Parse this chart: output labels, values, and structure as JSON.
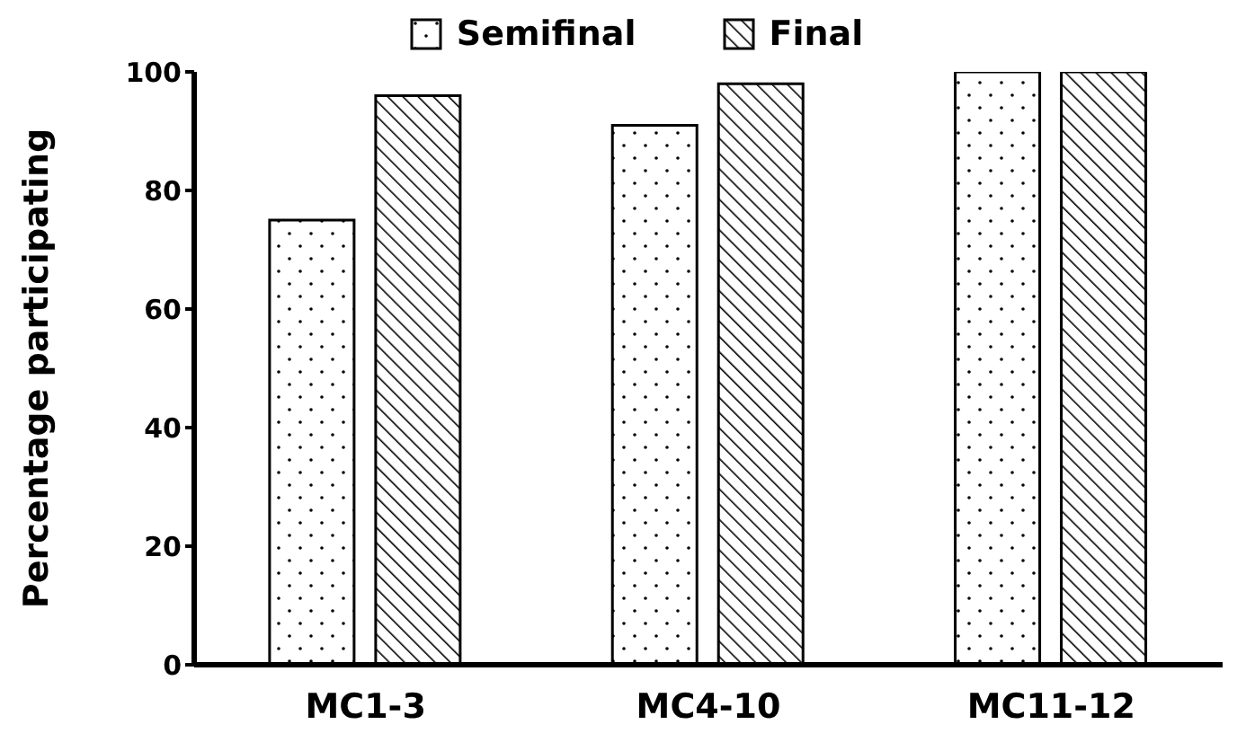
{
  "chart_data": {
    "type": "bar",
    "ylabel": "Percentage participating",
    "categories": [
      "MC1-3",
      "MC4-10",
      "MC11-12"
    ],
    "series": [
      {
        "name": "Semifinal",
        "color": "#000000",
        "values": [
          75,
          91,
          100
        ]
      },
      {
        "name": "Final",
        "color": "#000000",
        "values": [
          96,
          98,
          100
        ]
      }
    ],
    "ylim": [
      0,
      100
    ],
    "yticks": [
      0,
      20,
      40,
      60,
      80,
      100
    ],
    "grid": false,
    "legend": "top"
  }
}
